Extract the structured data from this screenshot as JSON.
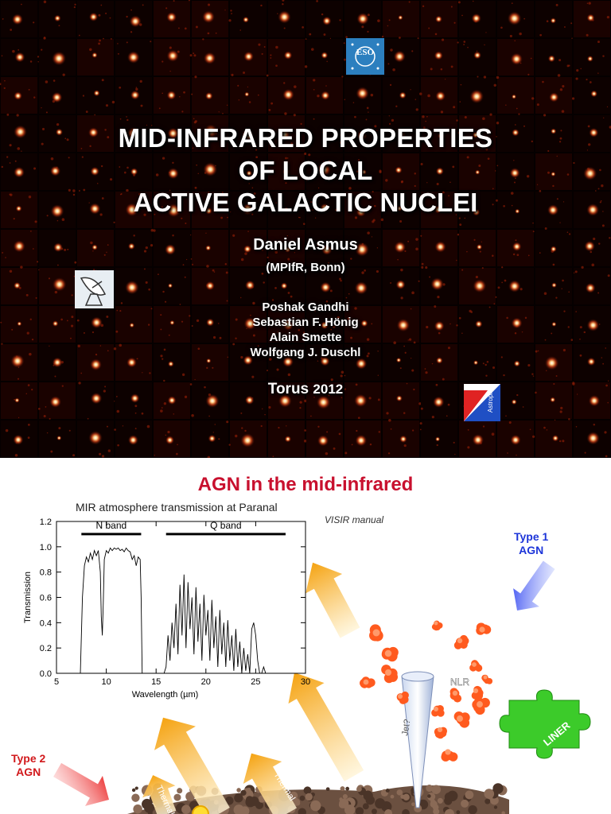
{
  "slide1": {
    "title_lines": [
      "MID-INFRARED PROPERTIES",
      "OF LOCAL",
      "ACTIVE GALACTIC NUCLEI"
    ],
    "author": "Daniel Asmus",
    "affiliation": "(MPIfR, Bonn)",
    "coauthors": [
      "Poshak Gandhi",
      "Sebastian F. Hönig",
      "Alain Smette",
      "Wolfgang J. Duschl"
    ],
    "conference": "Torus",
    "conference_year": "2012",
    "logos": {
      "eso_text": "ESO",
      "kiel_text": "Astrophysik Kiel"
    }
  },
  "slide2": {
    "title": "AGN in the mid-infrared",
    "plot_caption": "MIR atmosphere transmission at Paranal",
    "credit": "VISIR manual",
    "labels": {
      "type1": [
        "Type 1",
        "AGN"
      ],
      "type2": [
        "Type 2",
        "AGN"
      ],
      "thermal": "Thermal",
      "synchrotron": "Synchrotron",
      "jet": "Jet?",
      "nlr": "NLR",
      "liner": "LINER"
    }
  },
  "chart_data": {
    "type": "line",
    "title": "MIR atmosphere transmission at Paranal",
    "xlabel": "Wavelength (µm)",
    "ylabel": "Transmission",
    "xlim": [
      5,
      30
    ],
    "ylim": [
      0.0,
      1.2
    ],
    "xticks": [
      5,
      10,
      15,
      20,
      25,
      30
    ],
    "yticks": [
      0.0,
      0.2,
      0.4,
      0.6,
      0.8,
      1.0,
      1.2
    ],
    "band_labels": [
      "N band",
      "Q band"
    ],
    "bands": [
      {
        "name": "N band",
        "range": [
          7.5,
          13.5
        ],
        "level": 1.1
      },
      {
        "name": "Q band",
        "range": [
          16.0,
          28.0
        ],
        "level": 1.1
      }
    ],
    "series": [
      {
        "x": [
          7.4,
          7.6,
          7.8,
          8.0,
          8.2,
          8.4,
          8.6,
          8.8,
          9.0,
          9.2,
          9.4,
          9.5,
          9.6,
          9.7,
          9.8,
          10.0,
          10.2,
          10.4,
          10.6,
          10.8,
          11.0,
          11.2,
          11.4,
          11.6,
          11.8,
          12.0,
          12.2,
          12.4,
          12.6,
          12.8,
          13.0,
          13.2,
          13.4,
          13.5,
          13.6,
          14.0,
          15.0,
          15.8,
          16.0,
          16.2,
          16.4,
          16.6,
          16.8,
          17.0,
          17.2,
          17.4,
          17.6,
          17.8,
          18.0,
          18.2,
          18.4,
          18.6,
          18.8,
          19.0,
          19.2,
          19.4,
          19.6,
          19.8,
          20.0,
          20.2,
          20.4,
          20.6,
          20.8,
          21.0,
          21.2,
          21.4,
          21.6,
          21.8,
          22.0,
          22.2,
          22.4,
          22.6,
          22.8,
          23.0,
          23.2,
          23.4,
          23.6,
          23.8,
          24.0,
          24.2,
          24.4,
          24.6,
          24.8,
          25.0,
          25.2,
          25.4,
          25.6,
          25.8,
          26.0,
          26.5,
          28.0
        ],
        "y": [
          0.0,
          0.6,
          0.85,
          0.92,
          0.88,
          0.95,
          0.9,
          0.97,
          0.93,
          0.97,
          0.8,
          0.45,
          0.3,
          0.55,
          0.9,
          0.97,
          0.95,
          0.99,
          0.97,
          0.99,
          0.98,
          0.99,
          0.97,
          0.98,
          0.96,
          0.99,
          0.97,
          0.96,
          0.9,
          0.93,
          0.85,
          0.92,
          0.9,
          0.6,
          0.0,
          0.0,
          0.0,
          0.0,
          0.05,
          0.3,
          0.1,
          0.4,
          0.2,
          0.55,
          0.15,
          0.7,
          0.3,
          0.78,
          0.2,
          0.72,
          0.35,
          0.6,
          0.15,
          0.68,
          0.25,
          0.55,
          0.1,
          0.62,
          0.3,
          0.5,
          0.1,
          0.58,
          0.2,
          0.45,
          0.05,
          0.5,
          0.15,
          0.4,
          0.05,
          0.42,
          0.1,
          0.3,
          0.02,
          0.35,
          0.05,
          0.25,
          0.0,
          0.2,
          0.02,
          0.15,
          0.0,
          0.35,
          0.4,
          0.3,
          0.1,
          0.0,
          0.0,
          0.05,
          0.0,
          0.0,
          0.0
        ]
      }
    ],
    "grid": false
  }
}
